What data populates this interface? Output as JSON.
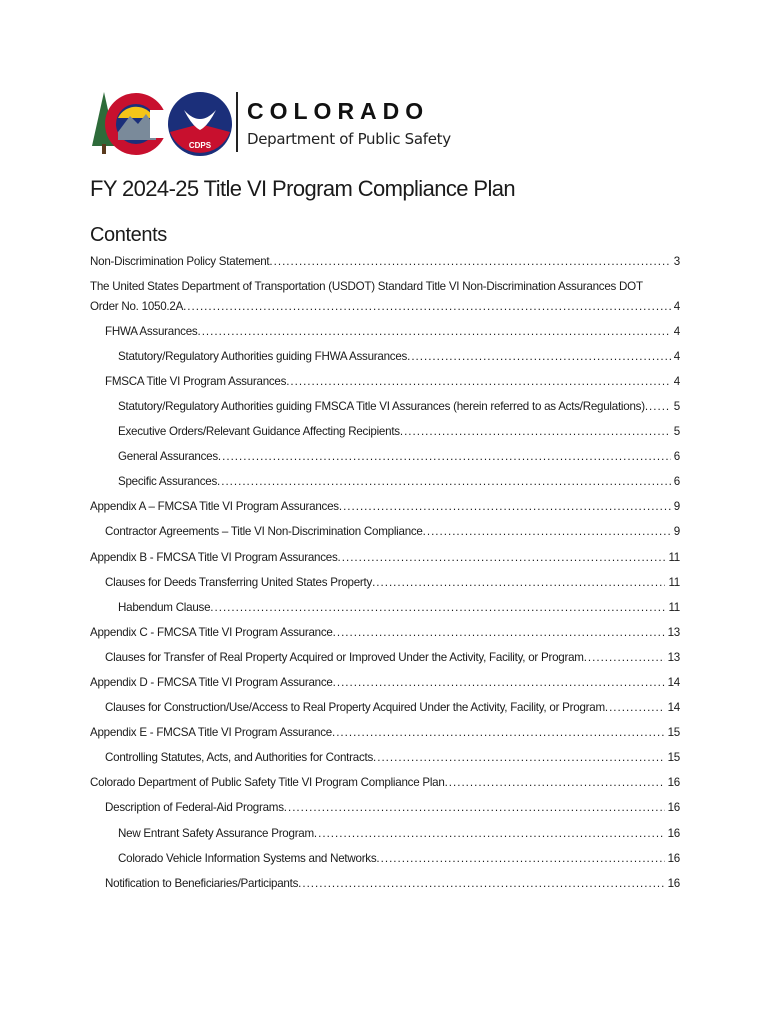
{
  "header": {
    "logo_text": "COLORADO",
    "department": "Department of Public Safety",
    "badge_text": "CDPS"
  },
  "document": {
    "title": "FY 2024-25 Title VI Program Compliance Plan",
    "contents_heading": "Contents"
  },
  "toc": [
    {
      "level": 0,
      "title": "Non-Discrimination Policy Statement",
      "page": "3"
    },
    {
      "level": 0,
      "title": "The United States Department of Transportation (USDOT) Standard Title VI Non-Discrimination Assurances DOT Order No. 1050.2A",
      "page": "4"
    },
    {
      "level": 1,
      "title": "FHWA Assurances",
      "page": "4"
    },
    {
      "level": 2,
      "title": "Statutory/Regulatory Authorities guiding FHWA Assurances",
      "page": "4"
    },
    {
      "level": 1,
      "title": "FMSCA Title VI Program Assurances",
      "page": "4"
    },
    {
      "level": 2,
      "title": "Statutory/Regulatory Authorities guiding FMSCA Title VI Assurances (herein referred to as Acts/Regulations)",
      "page": "5"
    },
    {
      "level": 2,
      "title": "Executive Orders/Relevant Guidance Affecting Recipients",
      "page": "5"
    },
    {
      "level": 2,
      "title": "General Assurances",
      "page": "6"
    },
    {
      "level": 2,
      "title": "Specific Assurances",
      "page": "6"
    },
    {
      "level": 0,
      "title": "Appendix A – FMCSA Title VI Program Assurances",
      "page": "9"
    },
    {
      "level": 1,
      "title": "Contractor Agreements – Title VI Non-Discrimination Compliance",
      "page": "9"
    },
    {
      "level": 0,
      "title": "Appendix B - FMCSA Title VI Program Assurances",
      "page": "11"
    },
    {
      "level": 1,
      "title": "Clauses for Deeds Transferring United States Property",
      "page": "11"
    },
    {
      "level": 2,
      "title": "Habendum Clause",
      "page": "11"
    },
    {
      "level": 0,
      "title": "Appendix C - FMCSA Title VI Program Assurance",
      "page": "13"
    },
    {
      "level": 1,
      "title": "Clauses for Transfer of Real Property Acquired or Improved Under the Activity, Facility, or Program",
      "page": "13"
    },
    {
      "level": 0,
      "title": "Appendix D - FMCSA Title VI Program Assurance",
      "page": "14"
    },
    {
      "level": 1,
      "title": "Clauses for Construction/Use/Access to Real Property Acquired Under the Activity, Facility, or Program",
      "page": "14"
    },
    {
      "level": 0,
      "title": "Appendix E - FMCSA Title VI Program Assurance",
      "page": "15"
    },
    {
      "level": 1,
      "title": "Controlling Statutes, Acts, and Authorities for Contracts",
      "page": "15"
    },
    {
      "level": 0,
      "title": "Colorado Department of Public Safety Title VI Program Compliance Plan",
      "page": "16"
    },
    {
      "level": 1,
      "title": "Description of Federal-Aid Programs",
      "page": "16"
    },
    {
      "level": 2,
      "title": "New Entrant Safety Assurance Program",
      "page": "16"
    },
    {
      "level": 2,
      "title": "Colorado Vehicle Information Systems and Networks",
      "page": "16"
    },
    {
      "level": 1,
      "title": "Notification to Beneficiaries/Participants",
      "page": "16"
    }
  ],
  "colors": {
    "red": "#c8102e",
    "blue": "#1b2f7a",
    "green": "#2e6b3a",
    "gold": "#f5c518"
  }
}
